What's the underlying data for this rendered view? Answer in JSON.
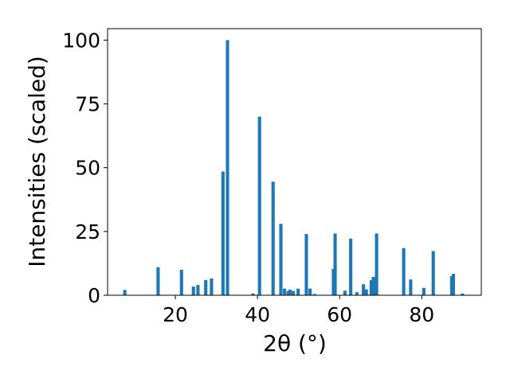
{
  "chart_data": {
    "type": "bar",
    "title": "",
    "xlabel": "2θ (°)",
    "ylabel": "Intensities (scaled)",
    "xlim": [
      3.5,
      94.5
    ],
    "ylim": [
      0,
      104.5
    ],
    "xticks": [
      20,
      40,
      60,
      80
    ],
    "yticks": [
      0,
      25,
      50,
      75,
      100
    ],
    "grid": false,
    "legend": "none",
    "bar_color": "#1f77b4",
    "bar_width": 0.8,
    "x": [
      7.7,
      15.8,
      21.5,
      24.4,
      25.5,
      27.4,
      28.8,
      31.6,
      32.7,
      38.9,
      40.5,
      43.8,
      45.7,
      46.6,
      47.5,
      47.9,
      48.7,
      49.9,
      51.9,
      52.8,
      53.9,
      58.5,
      58.9,
      61.3,
      62.7,
      64.2,
      65.8,
      66.5,
      67.7,
      68.2,
      69.0,
      75.6,
      77.3,
      80.5,
      82.8,
      87.3,
      87.7,
      89.9
    ],
    "values": [
      2.1,
      11.0,
      10.0,
      3.4,
      4.0,
      6.0,
      6.6,
      48.5,
      100.0,
      0.7,
      70.0,
      44.5,
      28.0,
      2.6,
      1.6,
      2.2,
      1.7,
      2.6,
      24.0,
      2.6,
      0.5,
      10.3,
      24.2,
      1.8,
      22.2,
      1.2,
      4.3,
      2.3,
      5.9,
      7.2,
      24.2,
      18.5,
      6.2,
      2.9,
      17.3,
      7.5,
      8.4,
      0.7
    ]
  }
}
